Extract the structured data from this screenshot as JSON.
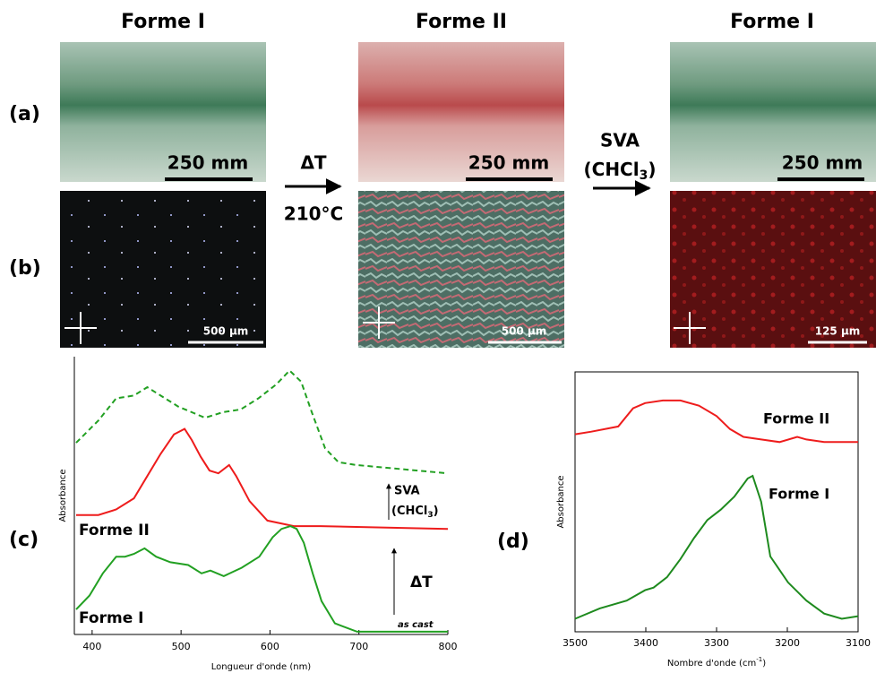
{
  "panel_labels": [
    "(a)",
    "(b)",
    "(c)",
    "(d)"
  ],
  "images": [
    {
      "title": "Forme I",
      "scale_top": "250 mm",
      "scale_bottom": "500 µm"
    },
    {
      "title": "Forme II",
      "scale_top": "250 mm",
      "scale_bottom": "500 µm"
    },
    {
      "title": "Forme I",
      "scale_top": "250 mm",
      "scale_bottom": "125 µm"
    }
  ],
  "transitions": [
    {
      "top": "ΔT",
      "bottom": "210°C"
    },
    {
      "top": "SVA",
      "bottom": [
        "(CHCl",
        "3",
        ")"
      ]
    }
  ],
  "chart_data": [
    {
      "type": "line",
      "xlabel": "Longueur d'onde (nm)",
      "ylabel": "Absorbance",
      "xlim": [
        380,
        800
      ],
      "xticks": [
        400,
        500,
        600,
        700,
        800
      ],
      "ylim": [
        0,
        1
      ],
      "annotations": {
        "svc": "SVA",
        "solvent": [
          "(CHCl",
          "3",
          ")"
        ],
        "heat": "ΔT",
        "start": "as cast"
      },
      "series": [
        {
          "style": "dashed",
          "color": "#22a022",
          "x": [
            382,
            407,
            427,
            447,
            462,
            477,
            497,
            512,
            527,
            547,
            567,
            587,
            607,
            622,
            635,
            647,
            662,
            677,
            697,
            800
          ],
          "values": [
            0.69,
            0.77,
            0.85,
            0.86,
            0.89,
            0.86,
            0.82,
            0.8,
            0.78,
            0.8,
            0.81,
            0.85,
            0.9,
            0.95,
            0.91,
            0.8,
            0.67,
            0.62,
            0.61,
            0.58
          ]
        },
        {
          "name": "Forme II",
          "style": "solid",
          "color": "#ee1c1c",
          "x": [
            382,
            407,
            427,
            447,
            462,
            477,
            492,
            504,
            512,
            522,
            532,
            542,
            554,
            562,
            577,
            597,
            627,
            657,
            800
          ],
          "values": [
            0.43,
            0.43,
            0.45,
            0.49,
            0.57,
            0.65,
            0.72,
            0.74,
            0.7,
            0.64,
            0.59,
            0.58,
            0.61,
            0.57,
            0.48,
            0.41,
            0.39,
            0.39,
            0.38
          ]
        },
        {
          "name": "Forme I",
          "style": "solid",
          "color": "#22a022",
          "x": [
            382,
            397,
            412,
            427,
            437,
            447,
            459,
            472,
            488,
            508,
            523,
            533,
            548,
            568,
            588,
            603,
            613,
            623,
            630,
            638,
            648,
            658,
            673,
            698,
            800
          ],
          "values": [
            0.09,
            0.14,
            0.22,
            0.28,
            0.28,
            0.29,
            0.31,
            0.28,
            0.26,
            0.25,
            0.22,
            0.23,
            0.21,
            0.24,
            0.28,
            0.35,
            0.38,
            0.39,
            0.38,
            0.33,
            0.22,
            0.12,
            0.04,
            0.01,
            0.01
          ]
        }
      ]
    },
    {
      "type": "line",
      "xlabel": [
        "Nombre d'onde (cm",
        "-1",
        ")"
      ],
      "ylabel": "Absorbance",
      "xlim": [
        3500,
        3100
      ],
      "xticks": [
        3500,
        3400,
        3300,
        3200,
        3100
      ],
      "ylim": [
        0,
        1
      ],
      "series": [
        {
          "name": "Forme II",
          "style": "solid",
          "color": "#ee1c1c",
          "x": [
            3500,
            3477,
            3439,
            3418,
            3401,
            3376,
            3351,
            3325,
            3300,
            3281,
            3262,
            3237,
            3211,
            3186,
            3173,
            3148,
            3100
          ],
          "values": [
            0.76,
            0.77,
            0.79,
            0.86,
            0.88,
            0.89,
            0.89,
            0.87,
            0.83,
            0.78,
            0.75,
            0.74,
            0.73,
            0.75,
            0.74,
            0.73,
            0.73
          ]
        },
        {
          "name": "Forme I",
          "style": "solid",
          "color": "#1e8a1e",
          "x": [
            3500,
            3465,
            3427,
            3401,
            3389,
            3370,
            3351,
            3332,
            3313,
            3294,
            3275,
            3256,
            3249,
            3237,
            3224,
            3199,
            3173,
            3148,
            3123,
            3100
          ],
          "values": [
            0.05,
            0.09,
            0.12,
            0.16,
            0.17,
            0.21,
            0.28,
            0.36,
            0.43,
            0.47,
            0.52,
            0.59,
            0.6,
            0.5,
            0.29,
            0.19,
            0.12,
            0.07,
            0.05,
            0.06
          ]
        }
      ]
    }
  ]
}
